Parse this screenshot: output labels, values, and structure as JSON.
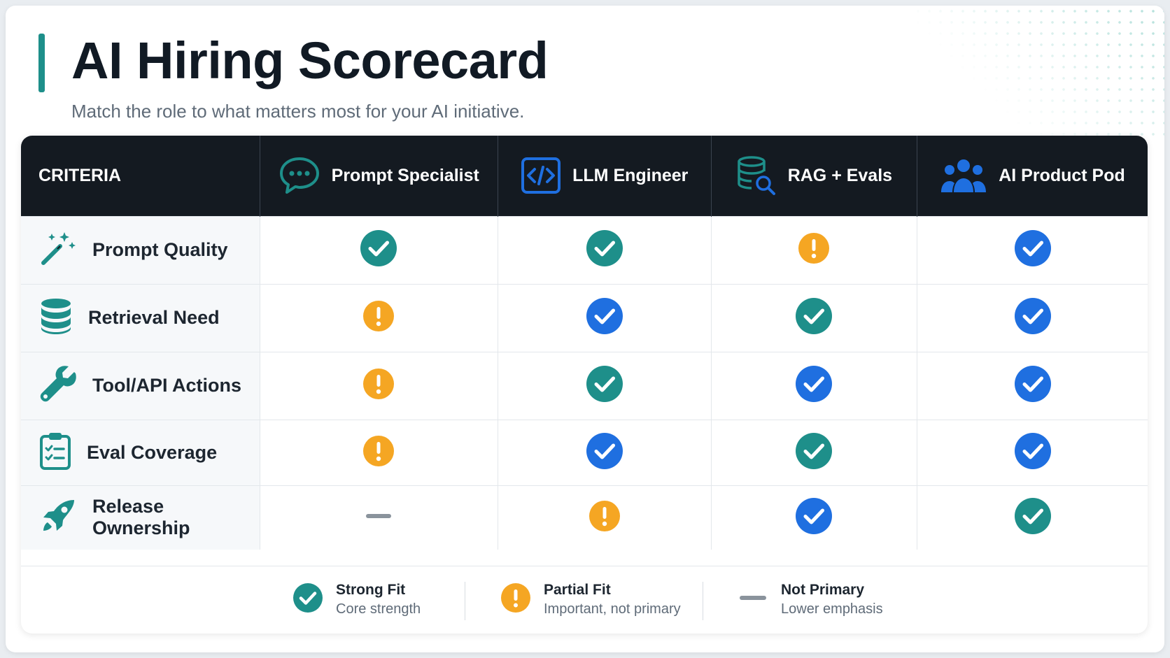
{
  "page": {
    "title": "AI Hiring Scorecard",
    "subtitle": "Match the role to what matters most for your AI initiative."
  },
  "table": {
    "criteria_header": "CRITERIA",
    "columns": [
      {
        "label": "Prompt Specialist",
        "icon": "chat-bubble-icon"
      },
      {
        "label": "LLM Engineer",
        "icon": "code-icon"
      },
      {
        "label": "RAG + Evals",
        "icon": "database-search-icon"
      },
      {
        "label": "AI Product Pod",
        "icon": "team-icon"
      }
    ],
    "rows": [
      {
        "label": "Prompt Quality",
        "icon": "magic-wand-icon",
        "cells": [
          "strong-teal",
          "strong-teal",
          "partial",
          "strong-blue"
        ]
      },
      {
        "label": "Retrieval Need",
        "icon": "database-icon",
        "cells": [
          "partial",
          "strong-blue",
          "strong-teal",
          "strong-blue"
        ]
      },
      {
        "label": "Tool/API Actions",
        "icon": "wrench-icon",
        "cells": [
          "partial",
          "strong-teal",
          "strong-blue",
          "strong-blue"
        ]
      },
      {
        "label": "Eval Coverage",
        "icon": "clipboard-check-icon",
        "cells": [
          "partial",
          "strong-blue",
          "strong-teal",
          "strong-blue"
        ]
      },
      {
        "label": "Release Ownership",
        "icon": "rocket-icon",
        "cells": [
          "none",
          "partial",
          "strong-blue",
          "strong-teal"
        ]
      }
    ]
  },
  "legend": {
    "strong": {
      "title": "Strong Fit",
      "sub": "Core strength"
    },
    "partial": {
      "title": "Partial Fit",
      "sub": "Important, not primary"
    },
    "none": {
      "title": "Not Primary",
      "sub": "Lower emphasis"
    }
  },
  "colors": {
    "teal": "#1e8f8a",
    "blue": "#1f6fe0",
    "orange": "#f5a623",
    "gray": "#8a939c",
    "header_bg": "#141a21"
  }
}
